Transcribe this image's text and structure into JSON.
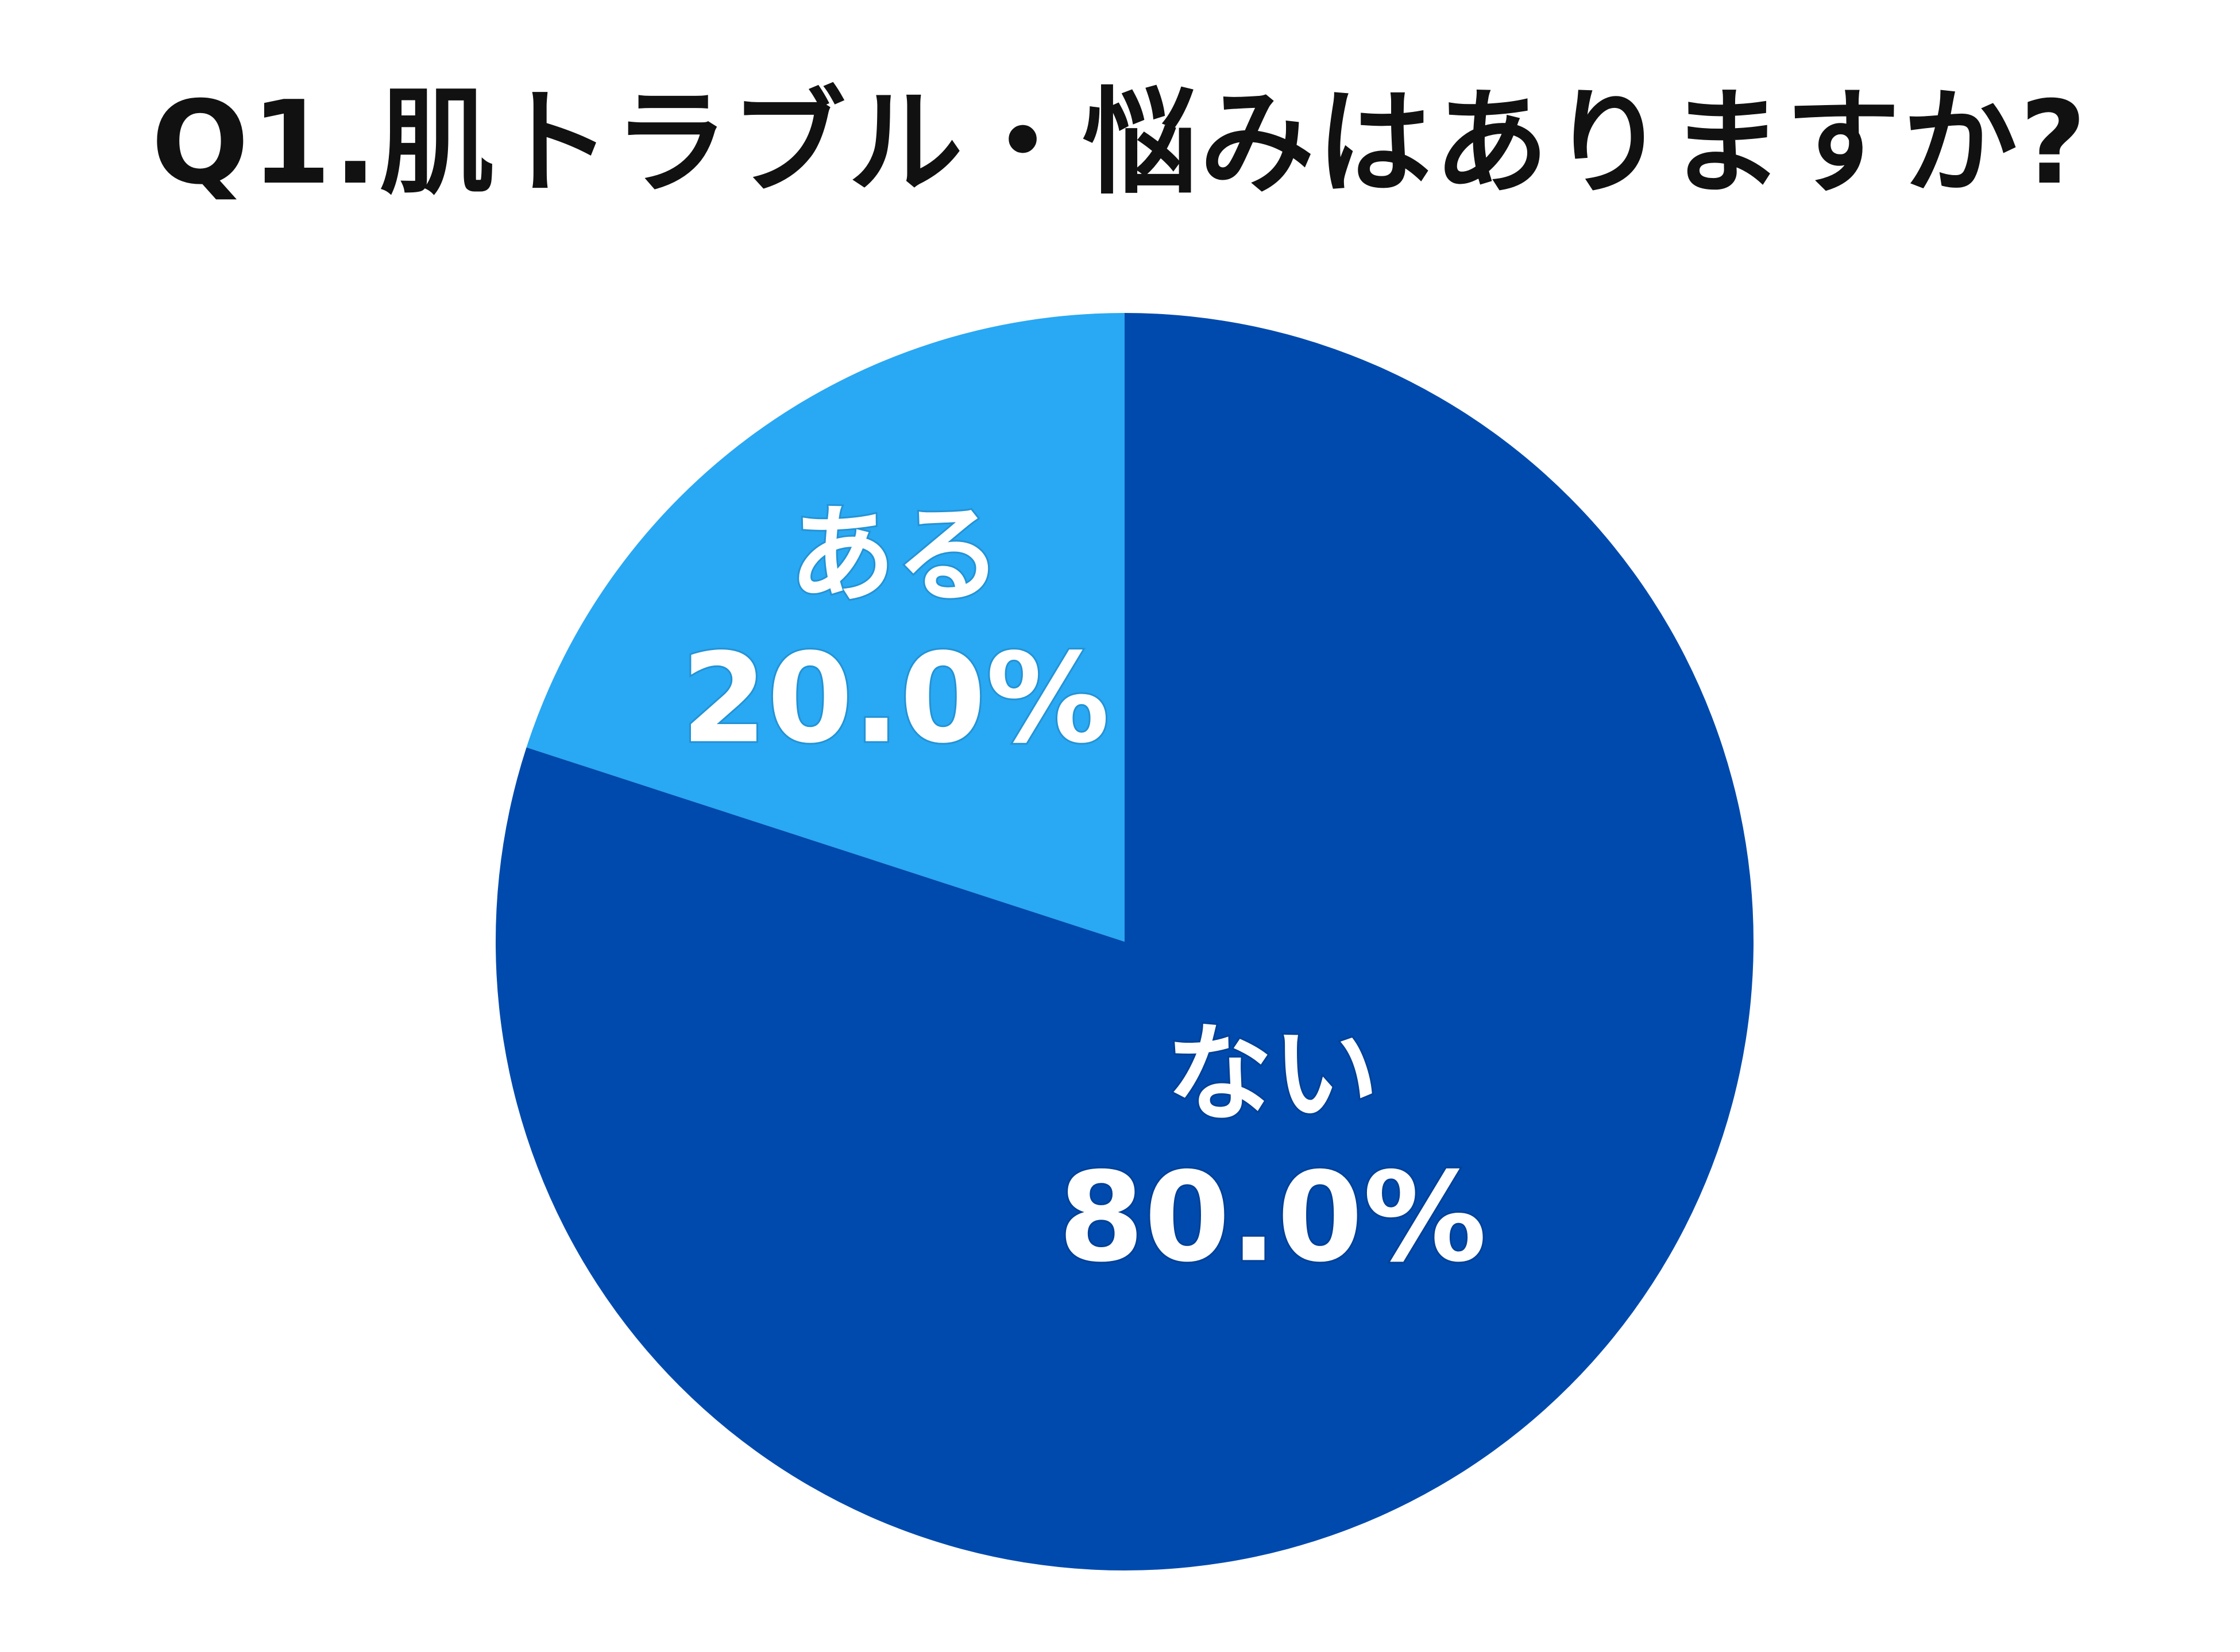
{
  "chart_data": {
    "type": "pie",
    "title": "Q1.肌トラブル・悩みはありますか?",
    "slices": [
      {
        "label": "ある",
        "value": 20.0,
        "value_label": "20.0%",
        "color": "#29A8F3"
      },
      {
        "label": "ない",
        "value": 80.0,
        "value_label": "80.0%",
        "color": "#004AAD"
      }
    ],
    "start_angle": "12 o'clock, clockwise",
    "legend": "none"
  }
}
